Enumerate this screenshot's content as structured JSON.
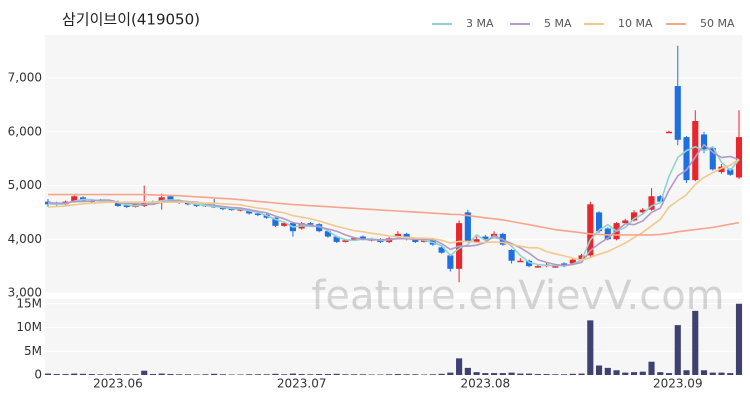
{
  "chart_data": [
    {
      "type": "candlestick",
      "title": "삼기이브이(419050)",
      "watermark": "feature.enVievV.com",
      "categories": [
        null,
        null,
        null,
        null,
        null,
        null,
        null,
        null,
        "2023.06",
        null,
        null,
        null,
        null,
        null,
        null,
        null,
        null,
        null,
        null,
        null,
        null,
        null,
        null,
        null,
        null,
        null,
        null,
        null,
        null,
        "2023.07",
        null,
        null,
        null,
        null,
        null,
        null,
        null,
        null,
        null,
        null,
        null,
        null,
        null,
        null,
        null,
        null,
        null,
        null,
        null,
        null,
        "2023.08",
        null,
        null,
        null,
        null,
        null,
        null,
        null,
        null,
        null,
        null,
        null,
        null,
        null,
        null,
        null,
        null,
        null,
        null,
        null,
        null,
        null,
        "2023.09",
        null,
        null,
        null,
        null,
        null,
        null,
        null
      ],
      "open": [
        4700,
        4680,
        4650,
        4700,
        4780,
        4720,
        4730,
        4720,
        4700,
        4630,
        4600,
        4620,
        4700,
        4680,
        4800,
        4720,
        4680,
        4650,
        4640,
        4620,
        4600,
        4570,
        4540,
        4550,
        4480,
        4460,
        4400,
        4250,
        4300,
        4200,
        4300,
        4280,
        4150,
        4050,
        3950,
        4000,
        4050,
        4000,
        4000,
        3950,
        4050,
        4100,
        4000,
        3950,
        3980,
        3850,
        3700,
        3450,
        4500,
        3950,
        4050,
        4050,
        4100,
        3800,
        3600,
        3600,
        3500,
        3500,
        3500,
        3550,
        3550,
        3620,
        3700,
        4500,
        4200,
        4000,
        4300,
        4350,
        4500,
        4550,
        4800,
        6000,
        6850,
        5900,
        5100,
        5950,
        5700,
        5250,
        5300,
        5150
      ],
      "high": [
        4750,
        4700,
        4720,
        4820,
        4800,
        4740,
        4750,
        4730,
        4720,
        4650,
        4670,
        5000,
        4720,
        4850,
        4820,
        4740,
        4700,
        4670,
        4660,
        4750,
        4620,
        4590,
        4580,
        4570,
        4500,
        4480,
        4410,
        4320,
        4320,
        4320,
        4320,
        4300,
        4170,
        4070,
        4000,
        4040,
        4070,
        4030,
        4020,
        4040,
        4150,
        4120,
        4020,
        4000,
        4000,
        3870,
        3720,
        4350,
        4550,
        4050,
        4080,
        4150,
        4120,
        3820,
        3650,
        3620,
        3530,
        3560,
        3540,
        3570,
        3650,
        3730,
        4700,
        4520,
        4220,
        4320,
        4380,
        4540,
        4580,
        4950,
        4820,
        6020,
        7600,
        5920,
        6400,
        6000,
        5720,
        5400,
        5320,
        6400
      ],
      "low": [
        4600,
        4620,
        4630,
        4680,
        4700,
        4680,
        4700,
        4690,
        4600,
        4580,
        4590,
        4600,
        4660,
        4550,
        4700,
        4660,
        4630,
        4600,
        4600,
        4580,
        4540,
        4530,
        4520,
        4460,
        4430,
        4380,
        4230,
        4230,
        4050,
        4180,
        4260,
        4130,
        4030,
        3930,
        3940,
        3980,
        3980,
        3960,
        3930,
        3930,
        4030,
        3980,
        3930,
        3940,
        3880,
        3730,
        3400,
        3200,
        3940,
        3930,
        3980,
        4030,
        3880,
        3550,
        3580,
        3480,
        3470,
        3480,
        3470,
        3480,
        3530,
        3600,
        3650,
        4120,
        3980,
        3980,
        4280,
        4330,
        4480,
        4530,
        4680,
        5980,
        5750,
        5050,
        5080,
        5600,
        5280,
        5220,
        5180,
        5120
      ],
      "close": [
        4650,
        4640,
        4700,
        4800,
        4720,
        4700,
        4720,
        4700,
        4620,
        4600,
        4650,
        4700,
        4680,
        4780,
        4720,
        4680,
        4650,
        4620,
        4620,
        4600,
        4560,
        4550,
        4560,
        4480,
        4450,
        4400,
        4250,
        4300,
        4150,
        4300,
        4280,
        4150,
        4050,
        3950,
        3980,
        4020,
        4000,
        4000,
        3950,
        4020,
        4100,
        4000,
        3950,
        3980,
        3900,
        3750,
        3450,
        4300,
        3950,
        4000,
        4000,
        4100,
        3900,
        3600,
        3600,
        3500,
        3500,
        3530,
        3500,
        3500,
        3620,
        3700,
        4650,
        4150,
        4000,
        4300,
        4350,
        4500,
        4550,
        4800,
        4700,
        6000,
        5850,
        5100,
        6200,
        5650,
        5300,
        5350,
        5200,
        5900
      ],
      "up_color": "#e8262e",
      "down_color": "#1e6fe2",
      "series": [
        {
          "name": "3 MA",
          "color": "#8fd3cf",
          "values": [
            4660,
            4650,
            4660,
            4710,
            4740,
            4740,
            4710,
            4710,
            4680,
            4640,
            4620,
            4650,
            4680,
            4720,
            4730,
            4730,
            4680,
            4650,
            4630,
            4610,
            4590,
            4570,
            4560,
            4530,
            4500,
            4440,
            4370,
            4320,
            4230,
            4250,
            4240,
            4240,
            4160,
            4050,
            3990,
            3980,
            4000,
            4010,
            3980,
            3990,
            4020,
            4040,
            4020,
            3980,
            3940,
            3880,
            3700,
            3830,
            3900,
            4080,
            3980,
            4030,
            4000,
            3870,
            3700,
            3570,
            3530,
            3510,
            3510,
            3510,
            3540,
            3610,
            3990,
            4170,
            4270,
            4150,
            4220,
            4380,
            4470,
            4620,
            4680,
            5170,
            5520,
            5650,
            5720,
            5650,
            5720,
            5430,
            5280,
            5480
          ]
        },
        {
          "name": "5 MA",
          "color": "#b39ac8",
          "values": [
            4680,
            4670,
            4670,
            4700,
            4700,
            4710,
            4730,
            4730,
            4690,
            4670,
            4660,
            4650,
            4650,
            4690,
            4710,
            4710,
            4700,
            4690,
            4660,
            4630,
            4610,
            4590,
            4580,
            4550,
            4520,
            4490,
            4430,
            4380,
            4310,
            4280,
            4260,
            4230,
            4190,
            4150,
            4080,
            4030,
            4000,
            3990,
            3990,
            4000,
            4010,
            4010,
            4000,
            4000,
            3990,
            3920,
            3810,
            3870,
            3870,
            3890,
            3940,
            4070,
            3990,
            3920,
            3840,
            3740,
            3620,
            3570,
            3530,
            3510,
            3530,
            3570,
            3790,
            3920,
            4020,
            4160,
            4290,
            4270,
            4340,
            4500,
            4580,
            4910,
            5180,
            5290,
            5530,
            5760,
            5620,
            5520,
            5540,
            5480
          ]
        },
        {
          "name": "10 MA",
          "color": "#f2c98c",
          "values": [
            4600,
            4610,
            4620,
            4640,
            4660,
            4670,
            4680,
            4690,
            4690,
            4690,
            4690,
            4690,
            4690,
            4690,
            4690,
            4690,
            4690,
            4680,
            4670,
            4670,
            4660,
            4650,
            4640,
            4610,
            4580,
            4560,
            4520,
            4490,
            4440,
            4410,
            4380,
            4340,
            4290,
            4240,
            4200,
            4160,
            4140,
            4110,
            4090,
            4060,
            4050,
            4030,
            4020,
            4020,
            4010,
            3980,
            3930,
            3960,
            3960,
            3940,
            3940,
            3950,
            3940,
            3900,
            3870,
            3840,
            3840,
            3770,
            3730,
            3690,
            3650,
            3610,
            3660,
            3720,
            3770,
            3850,
            3930,
            4030,
            4130,
            4250,
            4370,
            4600,
            4720,
            4830,
            5020,
            5150,
            5240,
            5320,
            5380,
            5490
          ]
        },
        {
          "name": "50 MA",
          "color": "#f4a58c",
          "values": [
            4830,
            4830,
            4830,
            4830,
            4830,
            4830,
            4830,
            4830,
            4830,
            4830,
            4830,
            4830,
            4825,
            4820,
            4815,
            4810,
            4800,
            4790,
            4780,
            4770,
            4760,
            4750,
            4735,
            4720,
            4705,
            4690,
            4675,
            4660,
            4645,
            4635,
            4625,
            4615,
            4605,
            4595,
            4585,
            4575,
            4565,
            4555,
            4545,
            4535,
            4525,
            4515,
            4505,
            4495,
            4485,
            4475,
            4465,
            4460,
            4440,
            4420,
            4400,
            4380,
            4360,
            4330,
            4300,
            4270,
            4240,
            4210,
            4180,
            4160,
            4140,
            4120,
            4100,
            4090,
            4080,
            4080,
            4080,
            4080,
            4080,
            4080,
            4090,
            4110,
            4140,
            4160,
            4180,
            4200,
            4220,
            4250,
            4280,
            4310
          ]
        }
      ],
      "ylim": [
        3000,
        7800
      ],
      "yticks": [
        {
          "value": 3000,
          "label": "3,000"
        },
        {
          "value": 4000,
          "label": "4,000"
        },
        {
          "value": 5000,
          "label": "5,000"
        },
        {
          "value": 6000,
          "label": "6,000"
        },
        {
          "value": 7000,
          "label": "7,000"
        }
      ],
      "grid": true,
      "legend": "top-right"
    },
    {
      "type": "bar",
      "color": "#3f4170",
      "values": [
        300000,
        200000,
        200000,
        300000,
        250000,
        200000,
        150000,
        150000,
        200000,
        150000,
        150000,
        900000,
        200000,
        300000,
        200000,
        150000,
        150000,
        100000,
        150000,
        250000,
        150000,
        100000,
        100000,
        150000,
        150000,
        150000,
        250000,
        150000,
        300000,
        200000,
        150000,
        200000,
        200000,
        250000,
        150000,
        150000,
        150000,
        100000,
        100000,
        150000,
        200000,
        150000,
        150000,
        100000,
        150000,
        250000,
        500000,
        3500000,
        1500000,
        600000,
        400000,
        400000,
        400000,
        500000,
        300000,
        300000,
        200000,
        200000,
        150000,
        150000,
        250000,
        300000,
        11500000,
        2000000,
        1500000,
        1000000,
        500000,
        600000,
        700000,
        2800000,
        600000,
        400000,
        10500000,
        1000000,
        13500000,
        1000000,
        500000,
        500000,
        400000,
        15000000
      ],
      "ylim": [
        0,
        16000000
      ],
      "yticks": [
        0,
        {
          "value": 5000000,
          "label": "5M"
        },
        {
          "value": 10000000,
          "label": "10M"
        },
        {
          "value": 15000000,
          "label": "15M"
        }
      ],
      "grid": true
    }
  ]
}
